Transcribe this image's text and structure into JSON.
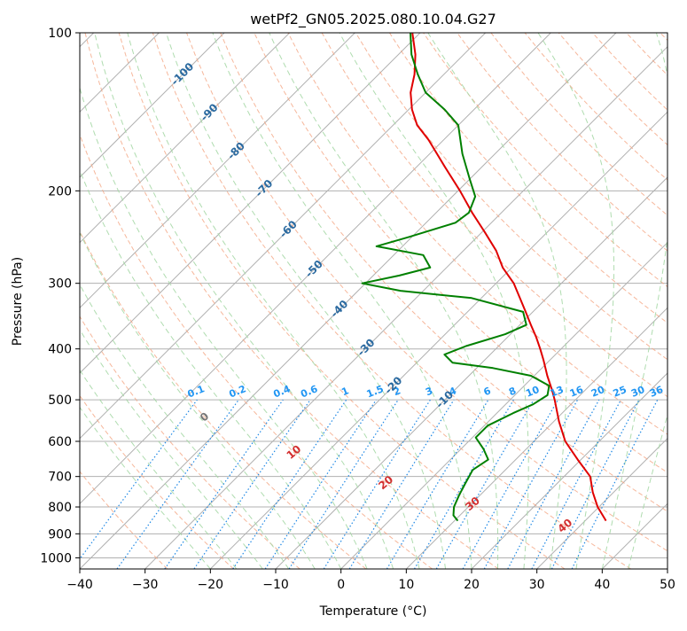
{
  "chart_data": {
    "type": "line",
    "title": "wetPf2_GN05.2025.080.10.04.G27",
    "xlabel": "Temperature (°C)",
    "ylabel": "Pressure (hPa)",
    "xlim": [
      -40,
      50
    ],
    "ylim": [
      1050,
      100
    ],
    "y_scale": "log",
    "grid": true,
    "x_ticks": [
      -40,
      -30,
      -20,
      -10,
      0,
      10,
      20,
      30,
      40,
      50
    ],
    "y_ticks": [
      100,
      200,
      300,
      400,
      500,
      600,
      700,
      800,
      900,
      1000
    ],
    "colors": {
      "temperature": "#e00000",
      "dewpoint": "#008000",
      "isotherm": "#b0b0b0",
      "dry_adiabat": "#f4a582",
      "moist_adiabat": "#a6d8a6",
      "mixing_ratio": "#1e88e5",
      "mixing_label": "#2196f3",
      "isotherm_label": "#2b6aa0",
      "dry_label": "#d32f2f"
    },
    "series": [
      {
        "role": "temperature",
        "points": [
          {
            "p": 850,
            "t": 33.2
          },
          {
            "p": 800,
            "t": 29.8
          },
          {
            "p": 750,
            "t": 26.8
          },
          {
            "p": 700,
            "t": 24.0
          },
          {
            "p": 650,
            "t": 19.5
          },
          {
            "p": 600,
            "t": 14.8
          },
          {
            "p": 550,
            "t": 10.8
          },
          {
            "p": 500,
            "t": 6.8
          },
          {
            "p": 480,
            "t": 5.0
          },
          {
            "p": 450,
            "t": 2.0
          },
          {
            "p": 420,
            "t": -1.0
          },
          {
            "p": 400,
            "t": -3.2
          },
          {
            "p": 380,
            "t": -5.6
          },
          {
            "p": 360,
            "t": -8.3
          },
          {
            "p": 340,
            "t": -11.1
          },
          {
            "p": 320,
            "t": -14.1
          },
          {
            "p": 300,
            "t": -17.3
          },
          {
            "p": 280,
            "t": -21.4
          },
          {
            "p": 260,
            "t": -25.0
          },
          {
            "p": 240,
            "t": -29.5
          },
          {
            "p": 220,
            "t": -34.5
          },
          {
            "p": 200,
            "t": -39.7
          },
          {
            "p": 180,
            "t": -45.7
          },
          {
            "p": 160,
            "t": -52.3
          },
          {
            "p": 150,
            "t": -56.3
          },
          {
            "p": 140,
            "t": -59.5
          },
          {
            "p": 130,
            "t": -62.3
          },
          {
            "p": 120,
            "t": -64.5
          },
          {
            "p": 110,
            "t": -67.4
          },
          {
            "p": 100,
            "t": -71.2
          }
        ]
      },
      {
        "role": "dewpoint",
        "points": [
          {
            "p": 850,
            "t": 10.5
          },
          {
            "p": 830,
            "t": 9.0
          },
          {
            "p": 800,
            "t": 7.8
          },
          {
            "p": 760,
            "t": 6.8
          },
          {
            "p": 720,
            "t": 5.9
          },
          {
            "p": 680,
            "t": 5.0
          },
          {
            "p": 650,
            "t": 5.8
          },
          {
            "p": 620,
            "t": 3.4
          },
          {
            "p": 590,
            "t": 0.5
          },
          {
            "p": 560,
            "t": 0.5
          },
          {
            "p": 530,
            "t": 2.5
          },
          {
            "p": 510,
            "t": 4.2
          },
          {
            "p": 490,
            "t": 5.0
          },
          {
            "p": 470,
            "t": 3.8
          },
          {
            "p": 450,
            "t": -0.5
          },
          {
            "p": 435,
            "t": -7.5
          },
          {
            "p": 425,
            "t": -14.5
          },
          {
            "p": 410,
            "t": -17.0
          },
          {
            "p": 395,
            "t": -15.0
          },
          {
            "p": 375,
            "t": -10.8
          },
          {
            "p": 360,
            "t": -9.0
          },
          {
            "p": 340,
            "t": -11.5
          },
          {
            "p": 320,
            "t": -21.5
          },
          {
            "p": 310,
            "t": -33.5
          },
          {
            "p": 300,
            "t": -40.5
          },
          {
            "p": 290,
            "t": -36.0
          },
          {
            "p": 280,
            "t": -32.5
          },
          {
            "p": 265,
            "t": -35.5
          },
          {
            "p": 255,
            "t": -44.0
          },
          {
            "p": 245,
            "t": -40.5
          },
          {
            "p": 230,
            "t": -35.5
          },
          {
            "p": 220,
            "t": -35.0
          },
          {
            "p": 205,
            "t": -36.5
          },
          {
            "p": 190,
            "t": -40.0
          },
          {
            "p": 170,
            "t": -45.0
          },
          {
            "p": 150,
            "t": -50.0
          },
          {
            "p": 140,
            "t": -54.5
          },
          {
            "p": 130,
            "t": -60.0
          },
          {
            "p": 120,
            "t": -64.0
          },
          {
            "p": 110,
            "t": -68.0
          },
          {
            "p": 100,
            "t": -71.5
          }
        ]
      }
    ],
    "isotherm_labels": [
      "-100",
      "-90",
      "-80",
      "-70",
      "-60",
      "-50",
      "-40",
      "-30",
      "-20",
      "-10"
    ],
    "isotherm_label_values": [
      -100,
      -90,
      -80,
      -70,
      -60,
      -50,
      -40,
      -30,
      -20,
      -10
    ],
    "dry_adiabat_labels": [
      "0",
      "10",
      "20",
      "30",
      "40"
    ],
    "dry_adiabat_label_values": [
      0,
      10,
      20,
      30,
      40
    ],
    "mixing_ratio_labels": [
      "0.1",
      "0.2",
      "0.4",
      "0.6",
      "1",
      "1.5",
      "2",
      "3",
      "4",
      "6",
      "8",
      "10",
      "13",
      "16",
      "20",
      "25",
      "30",
      "36"
    ],
    "mixing_ratio_values": [
      0.1,
      0.2,
      0.4,
      0.6,
      1,
      1.5,
      2,
      3,
      4,
      6,
      8,
      10,
      13,
      16,
      20,
      25,
      30,
      36
    ]
  }
}
